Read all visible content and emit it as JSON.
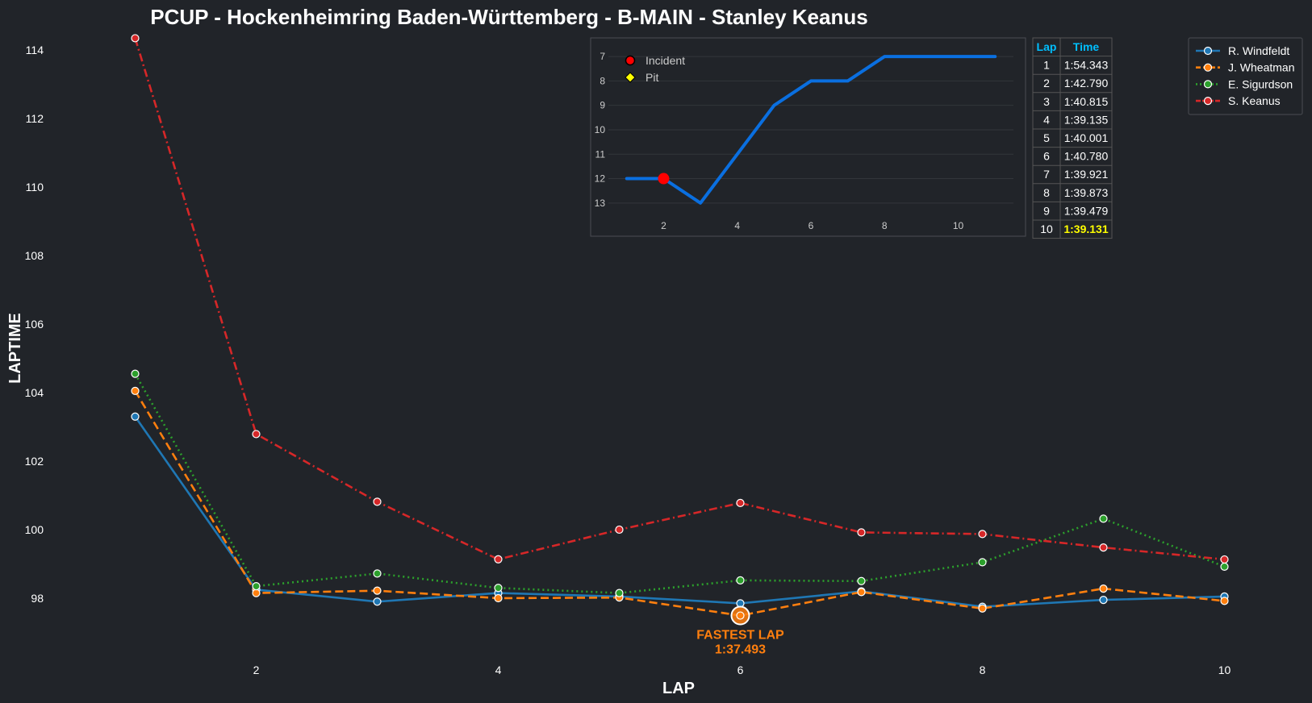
{
  "title": "PCUP - Hockenheimring Baden-Württemberg - B-MAIN - Stanley Keanus",
  "chart_data": [
    {
      "type": "line",
      "xlabel": "LAP",
      "ylabel": "LAPTIME",
      "xlim": [
        0.65,
        10.35
      ],
      "ylim": [
        96.4,
        114.4
      ],
      "xticks": [
        2,
        4,
        6,
        8,
        10
      ],
      "yticks": [
        98,
        100,
        102,
        104,
        106,
        108,
        110,
        112,
        114
      ],
      "grid": false,
      "legend_position": "top-right",
      "x": [
        1,
        2,
        3,
        4,
        5,
        6,
        7,
        8,
        9,
        10
      ],
      "series": [
        {
          "name": "R. Windfeldt",
          "color": "#1f77b4",
          "dash": "solid",
          "values": [
            103.3,
            98.25,
            97.9,
            98.15,
            98.05,
            97.85,
            98.2,
            97.75,
            97.95,
            98.05
          ]
        },
        {
          "name": "J. Wheatman",
          "color": "#ff7f0e",
          "dash": "dashed",
          "values": [
            104.05,
            98.15,
            98.22,
            98.0,
            98.02,
            97.493,
            98.18,
            97.7,
            98.28,
            97.92
          ]
        },
        {
          "name": "E. Sigurdson",
          "color": "#2ca02c",
          "dash": "dotted",
          "values": [
            104.55,
            98.35,
            98.72,
            98.3,
            98.15,
            98.52,
            98.5,
            99.05,
            100.32,
            98.92
          ]
        },
        {
          "name": "S. Keanus",
          "color": "#d62728",
          "dash": "dashdot",
          "values": [
            114.343,
            102.79,
            100.815,
            99.135,
            100.001,
            100.78,
            99.921,
            99.873,
            99.479,
            99.131
          ]
        }
      ],
      "annotation": {
        "label": "FASTEST LAP",
        "time": "1:37.493",
        "x": 6,
        "y": 97.493,
        "color": "#ff7f0e"
      }
    },
    {
      "type": "line",
      "xlim": [
        0.5,
        11.5
      ],
      "ylim": [
        13.6,
        6.6
      ],
      "y_inverted": true,
      "xticks": [
        2,
        4,
        6,
        8,
        10
      ],
      "yticks": [
        7,
        8,
        9,
        10,
        11,
        12,
        13
      ],
      "grid": true,
      "x": [
        1,
        2,
        3,
        4,
        5,
        6,
        7,
        8,
        9,
        10,
        11
      ],
      "values": [
        12,
        12,
        13,
        11,
        9,
        8,
        8,
        7,
        7,
        7,
        7
      ],
      "color": "#0a6fe0",
      "legend": [
        {
          "label": "Incident",
          "color": "#ff0000",
          "marker": "circle"
        },
        {
          "label": "Pit",
          "color": "#ffff00",
          "marker": "diamond"
        }
      ],
      "incidents": [
        2
      ],
      "pits": []
    },
    {
      "type": "table",
      "columns": [
        "Lap",
        "Time"
      ],
      "rows": [
        [
          "1",
          "1:54.343"
        ],
        [
          "2",
          "1:42.790"
        ],
        [
          "3",
          "1:40.815"
        ],
        [
          "4",
          "1:39.135"
        ],
        [
          "5",
          "1:40.001"
        ],
        [
          "6",
          "1:40.780"
        ],
        [
          "7",
          "1:39.921"
        ],
        [
          "8",
          "1:39.873"
        ],
        [
          "9",
          "1:39.479"
        ],
        [
          "10",
          "1:39.131"
        ]
      ],
      "best_row": 9
    }
  ]
}
